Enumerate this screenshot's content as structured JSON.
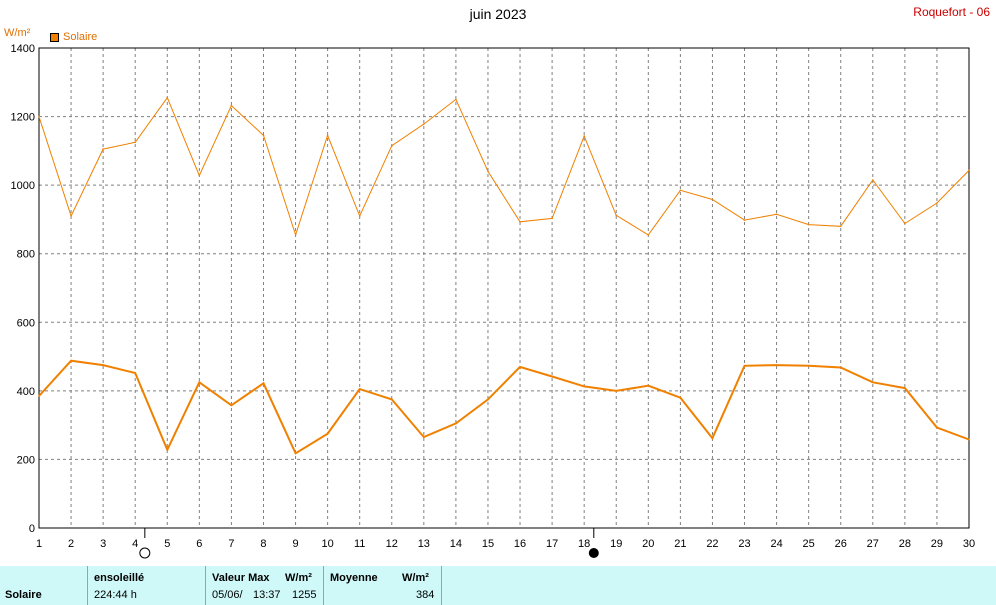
{
  "header": {
    "title": "juin 2023",
    "station": "Roquefort - 06",
    "unit": "W/m²",
    "legend_label": "Solaire"
  },
  "colors": {
    "series": "#f08000",
    "grid": "#808080",
    "footer_bg": "#cff8f8"
  },
  "moon_icons": [
    {
      "name": "full-moon-icon",
      "day": 4.3
    },
    {
      "name": "new-moon-icon",
      "day": 18.3
    }
  ],
  "chart_data": {
    "type": "line",
    "title": "juin 2023",
    "ylabel": "W/m²",
    "ylim": [
      0,
      1400
    ],
    "xlim": [
      1,
      30
    ],
    "yticks": [
      0,
      200,
      400,
      600,
      800,
      1000,
      1200,
      1400
    ],
    "x": [
      1,
      2,
      3,
      4,
      5,
      6,
      7,
      8,
      9,
      10,
      11,
      12,
      13,
      14,
      15,
      16,
      17,
      18,
      19,
      20,
      21,
      22,
      23,
      24,
      25,
      26,
      27,
      28,
      29,
      30
    ],
    "grid": true,
    "series": [
      {
        "name": "Solaire max",
        "values": [
          1200,
          910,
          1105,
          1125,
          1255,
          1028,
          1232,
          1145,
          855,
          1145,
          910,
          1115,
          1178,
          1250,
          1040,
          893,
          903,
          1143,
          912,
          855,
          985,
          958,
          898,
          915,
          885,
          880,
          1015,
          888,
          948,
          1043
        ]
      },
      {
        "name": "Solaire",
        "values": [
          385,
          488,
          475,
          452,
          228,
          425,
          358,
          422,
          218,
          275,
          405,
          375,
          265,
          305,
          375,
          470,
          442,
          413,
          400,
          415,
          380,
          262,
          473,
          475,
          473,
          468,
          425,
          408,
          293,
          258
        ]
      }
    ]
  },
  "footer": {
    "label": "Solaire",
    "sun_header": "ensoleillé",
    "sun_value": "224:44 h",
    "max_header": "Valeur Max",
    "max_unit": "W/m²",
    "max_date": "05/06/",
    "max_time": "13:37",
    "max_value": "1255",
    "avg_header": "Moyenne",
    "avg_unit": "W/m²",
    "avg_value": "384"
  }
}
